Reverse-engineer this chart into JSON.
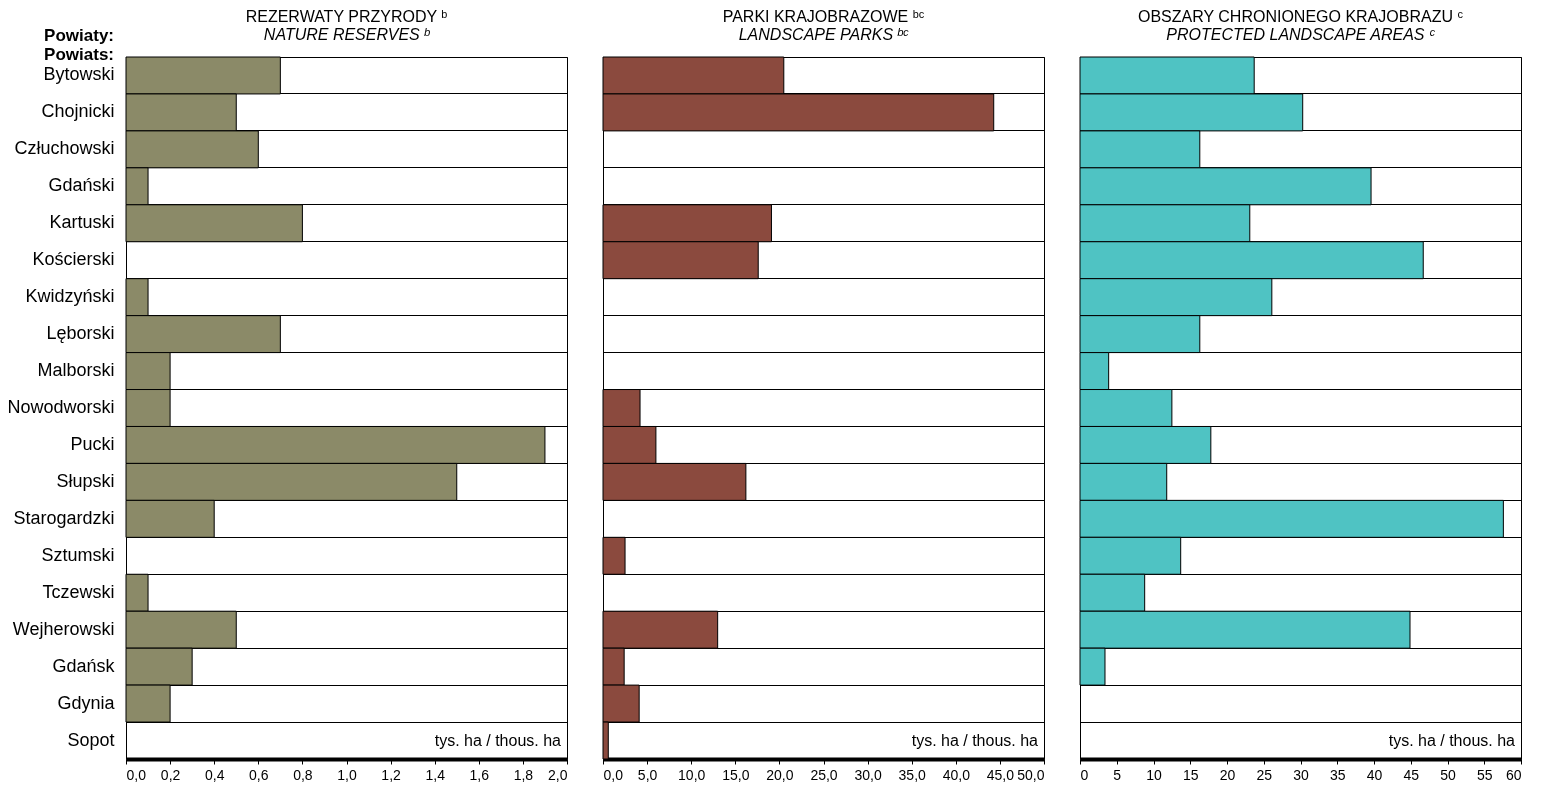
{
  "chart_data": [
    {
      "type": "bar",
      "orientation": "horizontal",
      "title": "REZERWATY PRZYRODY ᵇ",
      "subtitle": "NATURE RESERVES ᵇ",
      "ylabel": "Powiaty:\nPowiats:",
      "xlabel": "tys. ha / thous. ha",
      "categories": [
        "Bytowski",
        "Chojnicki",
        "Człuchowski",
        "Gdański",
        "Kartuski",
        "Kościerski",
        "Kwidzyński",
        "Lęborski",
        "Malborski",
        "Nowodworski",
        "Pucki",
        "Słupski",
        "Starogardzki",
        "Sztumski",
        "Tczewski",
        "Wejherowski",
        "Gdańsk",
        "Gdynia",
        "Sopot"
      ],
      "values": [
        0.7,
        0.5,
        0.6,
        0.1,
        0.8,
        null,
        0.1,
        0.7,
        0.2,
        0.2,
        1.9,
        1.5,
        0.4,
        null,
        0.1,
        0.5,
        0.3,
        0.2,
        null
      ],
      "color": "#8b8a68",
      "grid": "y",
      "xlim": [
        0,
        2
      ],
      "xticks": [
        {
          "value": 0,
          "label": "0,0"
        },
        {
          "value": 0.2,
          "label": "0,2"
        },
        {
          "value": 0.4,
          "label": "0,4"
        },
        {
          "value": 0.6,
          "label": "0,6"
        },
        {
          "value": 0.8,
          "label": "0,8"
        },
        {
          "value": 1,
          "label": "1,0"
        },
        {
          "value": 1.2,
          "label": "1,2"
        },
        {
          "value": 1.4,
          "label": "1,4"
        },
        {
          "value": 1.6,
          "label": "1,6"
        },
        {
          "value": 1.8,
          "label": "1,8"
        },
        {
          "value": 2,
          "label": "2,0"
        }
      ]
    },
    {
      "type": "bar",
      "orientation": "horizontal",
      "title": "PARKI KRAJOBRAZOWE ᵇᶜ",
      "subtitle": "LANDSCAPE PARKS ᵇᶜ",
      "xlabel": "tys. ha / thous. ha",
      "categories": [
        "Bytowski",
        "Chojnicki",
        "Człuchowski",
        "Gdański",
        "Kartuski",
        "Kościerski",
        "Kwidzyński",
        "Lęborski",
        "Malborski",
        "Nowodworski",
        "Pucki",
        "Słupski",
        "Starogardzki",
        "Sztumski",
        "Tczewski",
        "Wejherowski",
        "Gdańsk",
        "Gdynia",
        "Sopot"
      ],
      "values": [
        20.5,
        44.3,
        null,
        null,
        19.1,
        17.6,
        null,
        null,
        null,
        4.2,
        6.0,
        16.2,
        null,
        2.5,
        null,
        13.0,
        2.4,
        4.1,
        0.6
      ],
      "color": "#8b4a3e",
      "grid": "y",
      "tick_labels": "x",
      "xlim": [
        0,
        50
      ],
      "xticks": [
        {
          "value": 0,
          "label": "0,0"
        },
        {
          "value": 5,
          "label": "5,0"
        },
        {
          "value": 10,
          "label": "10,0"
        },
        {
          "value": 15,
          "label": "15,0"
        },
        {
          "value": 20,
          "label": "20,0"
        },
        {
          "value": 25,
          "label": "25,0"
        },
        {
          "value": 30,
          "label": "30,0"
        },
        {
          "value": 35,
          "label": "35,0"
        },
        {
          "value": 40,
          "label": "40,0"
        },
        {
          "value": 45,
          "label": "45,0"
        },
        {
          "value": 50,
          "label": "50,0"
        }
      ]
    },
    {
      "type": "bar",
      "orientation": "horizontal",
      "title": "OBSZARY CHRONIONEGO KRAJOBRAZU ᶜ",
      "subtitle": "PROTECTED LANDSCAPE AREAS ᶜ",
      "xlabel": "tys. ha / thous. ha",
      "categories": [
        "Bytowski",
        "Chojnicki",
        "Człuchowski",
        "Gdański",
        "Kartuski",
        "Kościerski",
        "Kwidzyński",
        "Lęborski",
        "Malborski",
        "Nowodworski",
        "Pucki",
        "Słupski",
        "Starogardzki",
        "Sztumski",
        "Tczewski",
        "Wejherowski",
        "Gdańsk",
        "Gdynia",
        "Sopot"
      ],
      "values": [
        23.7,
        30.3,
        16.3,
        39.6,
        23.1,
        46.7,
        26.1,
        16.3,
        3.9,
        12.5,
        17.8,
        11.8,
        57.6,
        13.7,
        8.8,
        44.9,
        3.4,
        null,
        null
      ],
      "color": "#4fc3c3",
      "grid": "y",
      "tick_labels": "x",
      "xlim": [
        0,
        60
      ],
      "xticks": [
        0,
        5,
        10,
        15,
        20,
        25,
        30,
        35,
        40,
        45,
        50,
        55,
        60
      ]
    }
  ]
}
